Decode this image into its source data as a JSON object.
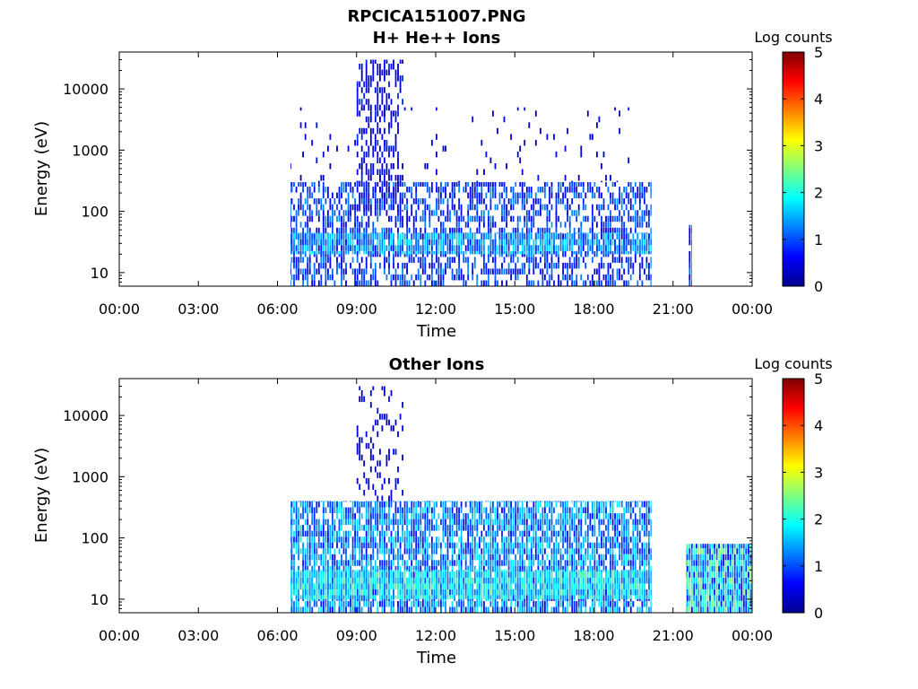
{
  "figure": {
    "title": "RPCICA151007.PNG"
  },
  "colormap": [
    "#00008f",
    "#0000ff",
    "#007fff",
    "#00ffff",
    "#7fff7f",
    "#ffff00",
    "#ff7f00",
    "#ff0000",
    "#7f0000"
  ],
  "chart_data": [
    {
      "type": "heatmap",
      "title": "H+ He++ Ions",
      "xlabel": "Time",
      "ylabel": "Energy (eV)",
      "x_ticks": [
        "00:00",
        "03:00",
        "06:00",
        "09:00",
        "12:00",
        "15:00",
        "18:00",
        "21:00",
        "00:00"
      ],
      "x_range_hours": [
        0,
        24
      ],
      "y_scale": "log",
      "y_ticks": [
        "10",
        "100",
        "1000",
        "10000"
      ],
      "y_tick_values": [
        10,
        100,
        1000,
        10000
      ],
      "y_range": [
        6,
        40000
      ],
      "colorbar": {
        "label": "Log counts",
        "ticks": [
          "0",
          "1",
          "2",
          "3",
          "4",
          "5"
        ],
        "range": [
          0,
          5
        ]
      },
      "regions": [
        {
          "t_start": 6.5,
          "t_end": 20.2,
          "e_low": 6,
          "e_high": 300,
          "density": 0.55,
          "level_min": 0.3,
          "level_max": 1.4
        },
        {
          "t_start": 6.5,
          "t_end": 20.2,
          "e_low": 20,
          "e_high": 45,
          "density": 0.8,
          "level_min": 0.8,
          "level_max": 1.9
        },
        {
          "t_start": 9.0,
          "t_end": 10.8,
          "e_low": 100,
          "e_high": 30000,
          "density": 0.45,
          "level_min": 0.1,
          "level_max": 0.9
        },
        {
          "t_start": 6.5,
          "t_end": 20.2,
          "e_low": 300,
          "e_high": 5000,
          "density": 0.04,
          "level_min": 0.1,
          "level_max": 0.7
        },
        {
          "t_start": 21.6,
          "t_end": 21.7,
          "e_low": 6,
          "e_high": 60,
          "density": 0.9,
          "level_min": 0.3,
          "level_max": 1.2
        }
      ]
    },
    {
      "type": "heatmap",
      "title": "Other Ions",
      "xlabel": "Time",
      "ylabel": "Energy (eV)",
      "x_ticks": [
        "00:00",
        "03:00",
        "06:00",
        "09:00",
        "12:00",
        "15:00",
        "18:00",
        "21:00",
        "00:00"
      ],
      "x_range_hours": [
        0,
        24
      ],
      "y_scale": "log",
      "y_ticks": [
        "10",
        "100",
        "1000",
        "10000"
      ],
      "y_tick_values": [
        10,
        100,
        1000,
        10000
      ],
      "y_range": [
        6,
        40000
      ],
      "colorbar": {
        "label": "Log counts",
        "ticks": [
          "0",
          "1",
          "2",
          "3",
          "4",
          "5"
        ],
        "range": [
          0,
          5
        ]
      },
      "regions": [
        {
          "t_start": 6.5,
          "t_end": 20.2,
          "e_low": 6,
          "e_high": 400,
          "density": 0.8,
          "level_min": 0.6,
          "level_max": 1.9
        },
        {
          "t_start": 6.5,
          "t_end": 20.2,
          "e_low": 10,
          "e_high": 30,
          "density": 0.85,
          "level_min": 1.2,
          "level_max": 2.3
        },
        {
          "t_start": 9.0,
          "t_end": 10.8,
          "e_low": 400,
          "e_high": 30000,
          "density": 0.2,
          "level_min": 0.1,
          "level_max": 0.7
        },
        {
          "t_start": 21.5,
          "t_end": 24.0,
          "e_low": 6,
          "e_high": 80,
          "density": 1.0,
          "level_min": 0.5,
          "level_max": 2.6
        }
      ]
    }
  ]
}
